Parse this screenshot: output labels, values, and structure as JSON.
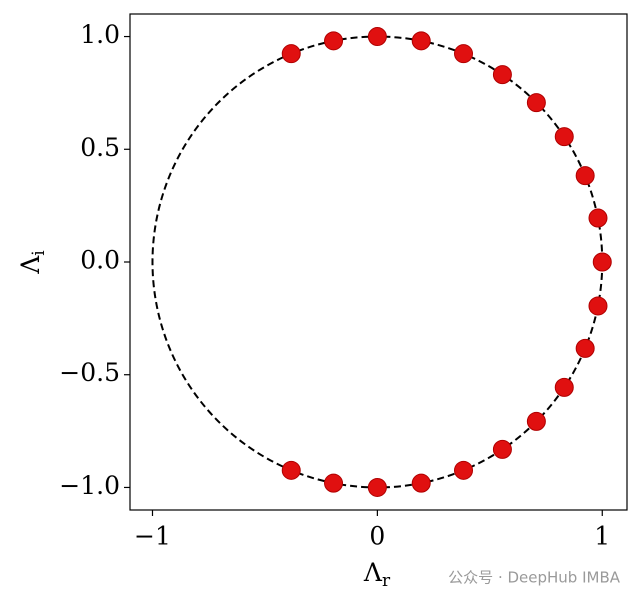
{
  "chart_data": {
    "type": "scatter",
    "x": [
      -0.383,
      -0.195,
      0,
      0.195,
      0.383,
      0.556,
      0.707,
      0.831,
      0.924,
      0.981,
      1,
      0.981,
      0.924,
      0.831,
      0.707,
      0.556,
      0.383,
      0.195,
      0,
      -0.195,
      -0.383
    ],
    "values": [
      -0.924,
      -0.981,
      -1,
      -0.981,
      -0.924,
      -0.831,
      -0.707,
      -0.556,
      -0.383,
      -0.195,
      0,
      0.195,
      0.383,
      0.556,
      0.707,
      0.831,
      0.924,
      0.981,
      1,
      0.981,
      0.924
    ],
    "color": "#e01010",
    "reference_circle": {
      "radius": 1,
      "color": "#000000",
      "style": "dashed"
    },
    "xlim": [
      -1.1,
      1.11
    ],
    "ylim": [
      -1.1,
      1.1
    ],
    "xticks": [
      {
        "value": -1,
        "label": "−1"
      },
      0,
      1
    ],
    "yticks": [
      {
        "value": -1,
        "label": "−1.0"
      },
      {
        "value": -0.5,
        "label": "−0.5"
      },
      {
        "value": 0,
        "label": "0.0"
      },
      {
        "value": 0.5,
        "label": "0.5"
      },
      {
        "value": 1,
        "label": "1.0"
      }
    ],
    "xlabel": {
      "base": "Λ",
      "sub": "r"
    },
    "ylabel": {
      "base": "Λ",
      "sub": "i"
    },
    "watermark": "公众号 · DeepHub IMBA"
  }
}
